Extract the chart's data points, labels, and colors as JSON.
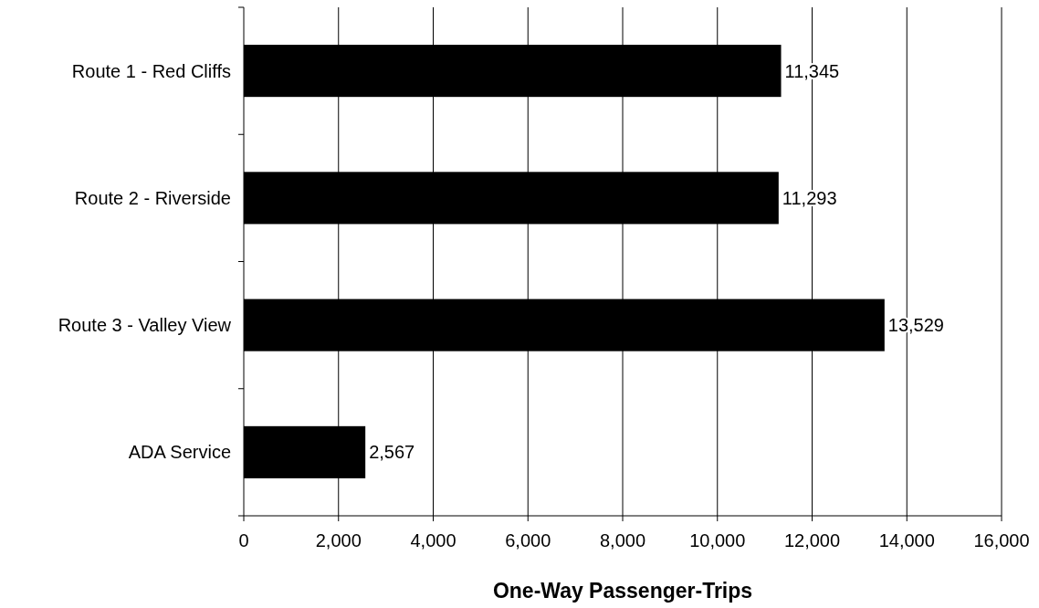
{
  "chart_data": {
    "type": "bar",
    "orientation": "horizontal",
    "xlabel": "One-Way Passenger-Trips",
    "categories": [
      "Route 1 - Red Cliffs",
      "Route 2 - Riverside",
      "Route 3 - Valley View",
      "ADA Service"
    ],
    "values": [
      11345,
      11293,
      13529,
      2567
    ],
    "value_labels": [
      "11,345",
      "11,293",
      "13,529",
      "2,567"
    ],
    "color": "#000000",
    "grid": "x",
    "xlim": [
      0,
      16000
    ],
    "xticks": [
      {
        "value": 0,
        "label": "0"
      },
      {
        "value": 2000,
        "label": "2,000"
      },
      {
        "value": 4000,
        "label": "4,000"
      },
      {
        "value": 6000,
        "label": "6,000"
      },
      {
        "value": 8000,
        "label": "8,000"
      },
      {
        "value": 10000,
        "label": "10,000"
      },
      {
        "value": 12000,
        "label": "12,000"
      },
      {
        "value": 14000,
        "label": "14,000"
      },
      {
        "value": 16000,
        "label": "16,000"
      }
    ]
  }
}
